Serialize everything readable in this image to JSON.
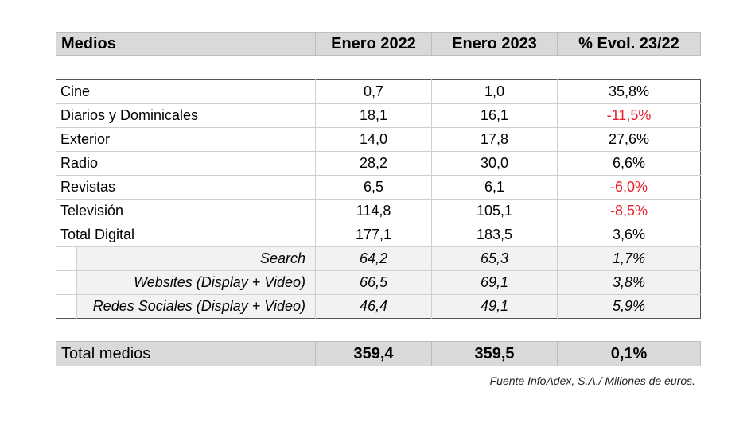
{
  "header": {
    "medios": "Medios",
    "enero_2022": "Enero 2022",
    "enero_2023": "Enero 2023",
    "evol": "% Evol. 23/22"
  },
  "rows": [
    {
      "label": "Cine",
      "v2022": "0,7",
      "v2023": "1,0",
      "evol": "35,8%",
      "negative": false
    },
    {
      "label": "Diarios y Dominicales",
      "v2022": "18,1",
      "v2023": "16,1",
      "evol": "-11,5%",
      "negative": true
    },
    {
      "label": "Exterior",
      "v2022": "14,0",
      "v2023": "17,8",
      "evol": "27,6%",
      "negative": false
    },
    {
      "label": "Radio",
      "v2022": "28,2",
      "v2023": "30,0",
      "evol": "6,6%",
      "negative": false
    },
    {
      "label": "Revistas",
      "v2022": "6,5",
      "v2023": "6,1",
      "evol": "-6,0%",
      "negative": true
    },
    {
      "label": "Televisión",
      "v2022": "114,8",
      "v2023": "105,1",
      "evol": "-8,5%",
      "negative": true
    },
    {
      "label": "Total Digital",
      "v2022": "177,1",
      "v2023": "183,5",
      "evol": "3,6%",
      "negative": false
    }
  ],
  "sub_rows": [
    {
      "label": "Search",
      "v2022": "64,2",
      "v2023": "65,3",
      "evol": "1,7%"
    },
    {
      "label": "Websites (Display + Video)",
      "v2022": "66,5",
      "v2023": "69,1",
      "evol": "3,8%"
    },
    {
      "label": "Redes Sociales (Display + Video)",
      "v2022": "46,4",
      "v2023": "49,1",
      "evol": "5,9%"
    }
  ],
  "total": {
    "label": "Total medios",
    "v2022": "359,4",
    "v2023": "359,5",
    "evol": "0,1%"
  },
  "source": "Fuente InfoAdex, S.A./ Millones de euros.",
  "colors": {
    "negative": "#e8202a",
    "header_bg": "#d9d9d9",
    "subrow_bg": "#f2f2f2"
  }
}
